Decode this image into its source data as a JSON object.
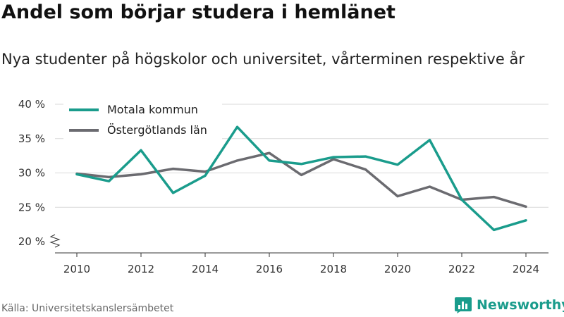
{
  "title": "Andel som börjar studera i hemlänet",
  "subtitle": "Nya studenter på högskolor och universitet, vårterminen respektive år",
  "source": "Källa: Universitetskanslersämbetet",
  "brand": {
    "name": "Newsworthy",
    "color": "#1a9c8c",
    "icon": "bar-chart-logo-icon"
  },
  "chart_data": {
    "type": "line",
    "x": [
      2010,
      2011,
      2012,
      2013,
      2014,
      2015,
      2016,
      2017,
      2018,
      2019,
      2020,
      2021,
      2022,
      2023,
      2024
    ],
    "series": [
      {
        "name": "Motala kommun",
        "color": "#1a9c8c",
        "values": [
          29.8,
          28.8,
          33.3,
          27.1,
          29.6,
          36.7,
          31.8,
          31.3,
          32.3,
          32.4,
          31.2,
          34.8,
          26.1,
          21.7,
          23.1
        ]
      },
      {
        "name": "Östergötlands län",
        "color": "#6b6b70",
        "values": [
          29.9,
          29.4,
          29.8,
          30.6,
          30.2,
          31.8,
          32.9,
          29.7,
          32.0,
          30.5,
          26.6,
          28.0,
          26.1,
          26.5,
          25.1
        ]
      }
    ],
    "xticks": [
      2010,
      2012,
      2014,
      2016,
      2018,
      2020,
      2022,
      2024
    ],
    "yticks": [
      20,
      25,
      30,
      35,
      40
    ],
    "ytick_labels": [
      "20 %",
      "25 %",
      "30 %",
      "35 %",
      "40 %"
    ],
    "ylim": [
      20,
      40
    ],
    "xlim": [
      2010,
      2024
    ],
    "y_axis_break": true,
    "grid": "horizontal",
    "legend_position": "top-left",
    "xlabel": "",
    "ylabel": ""
  }
}
